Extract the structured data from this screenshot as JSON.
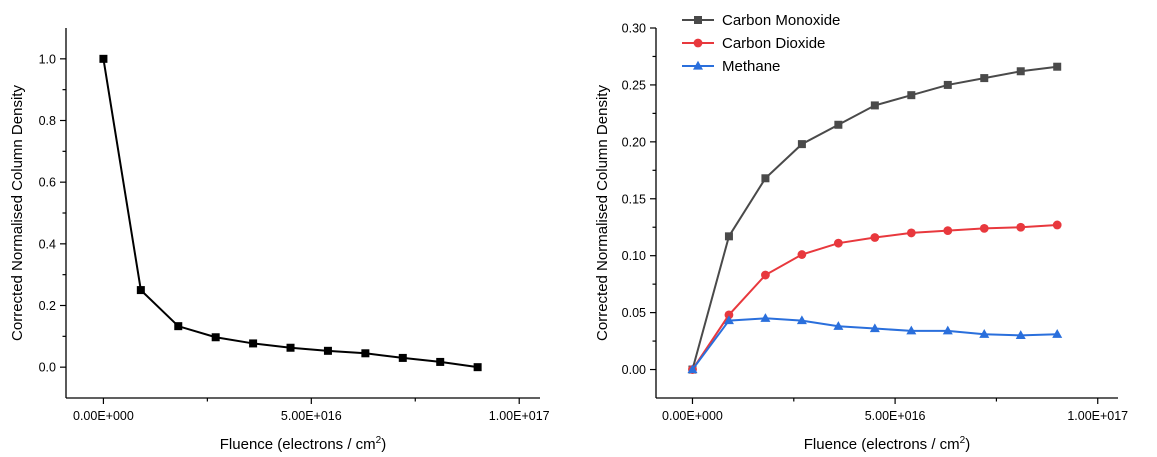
{
  "chart_data": [
    {
      "type": "line",
      "title": "",
      "xlabel": "Fluence (electrons / cm",
      "xlabel_sup": "2",
      "xlabel_suffix": ")",
      "ylabel": "Corrected Normalised Column Density",
      "xlim": [
        -9000000000000000.0,
        1.05e+17
      ],
      "ylim": [
        -0.1,
        1.1
      ],
      "x_ticks": [
        0,
        5e+16,
        1e+17
      ],
      "x_tick_labels": [
        "0.00E+000",
        "5.00E+016",
        "1.00E+017"
      ],
      "y_ticks": [
        0.0,
        0.2,
        0.4,
        0.6,
        0.8,
        1.0
      ],
      "y_tick_labels": [
        "0.0",
        "0.2",
        "0.4",
        "0.6",
        "0.8",
        "1.0"
      ],
      "grid": false,
      "series": [
        {
          "color": "#000000",
          "marker": "square",
          "x": [
            0,
            9000000000000000.0,
            1.8e+16,
            2.7e+16,
            3.6e+16,
            4.5e+16,
            5.4e+16,
            6.3e+16,
            7.2e+16,
            8.1e+16,
            9e+16
          ],
          "y": [
            1.0,
            0.25,
            0.133,
            0.097,
            0.077,
            0.063,
            0.053,
            0.045,
            0.03,
            0.017,
            0.0
          ]
        }
      ]
    },
    {
      "type": "line",
      "title": "",
      "xlabel": "Fluence (electrons / cm",
      "xlabel_sup": "2",
      "xlabel_suffix": ")",
      "ylabel": "Corrected Normalised Column Density",
      "xlim": [
        -9000000000000000.0,
        1.05e+17
      ],
      "ylim": [
        -0.025,
        0.3
      ],
      "x_ticks": [
        0,
        5e+16,
        1e+17
      ],
      "x_tick_labels": [
        "0.00E+000",
        "5.00E+016",
        "1.00E+017"
      ],
      "y_ticks": [
        0.0,
        0.05,
        0.1,
        0.15,
        0.2,
        0.25,
        0.3
      ],
      "y_tick_labels": [
        "0.00",
        "0.05",
        "0.10",
        "0.15",
        "0.20",
        "0.25",
        "0.30"
      ],
      "grid": false,
      "legend": "top-left",
      "series": [
        {
          "name": "Carbon Monoxide",
          "color": "#4a4a4a",
          "marker": "square",
          "x": [
            0,
            9000000000000000.0,
            1.8e+16,
            2.7e+16,
            3.6e+16,
            4.5e+16,
            5.4e+16,
            6.3e+16,
            7.2e+16,
            8.1e+16,
            9e+16
          ],
          "y": [
            0.0,
            0.117,
            0.168,
            0.198,
            0.215,
            0.232,
            0.241,
            0.25,
            0.256,
            0.262,
            0.266
          ]
        },
        {
          "name": "Carbon Dioxide",
          "color": "#e8383d",
          "marker": "circle",
          "x": [
            0,
            9000000000000000.0,
            1.8e+16,
            2.7e+16,
            3.6e+16,
            4.5e+16,
            5.4e+16,
            6.3e+16,
            7.2e+16,
            8.1e+16,
            9e+16
          ],
          "y": [
            0.0,
            0.048,
            0.083,
            0.101,
            0.111,
            0.116,
            0.12,
            0.122,
            0.124,
            0.125,
            0.127
          ]
        },
        {
          "name": "Methane",
          "color": "#2a6fdc",
          "marker": "triangle",
          "x": [
            0,
            9000000000000000.0,
            1.8e+16,
            2.7e+16,
            3.6e+16,
            4.5e+16,
            5.4e+16,
            6.3e+16,
            7.2e+16,
            8.1e+16,
            9e+16
          ],
          "y": [
            0.0,
            0.043,
            0.045,
            0.043,
            0.038,
            0.036,
            0.034,
            0.034,
            0.031,
            0.03,
            0.031
          ]
        }
      ]
    }
  ]
}
